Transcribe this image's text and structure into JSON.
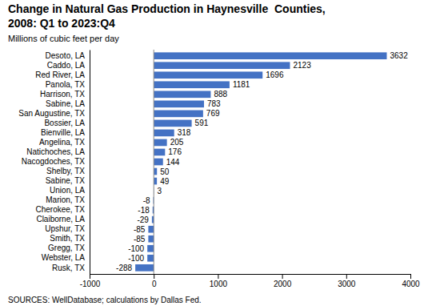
{
  "chart_data": {
    "type": "bar",
    "orientation": "horizontal",
    "title": [
      "Change in Natural Gas Production in Haynesville  Counties,",
      "2008: Q1 to 2023:Q4"
    ],
    "subtitle": "Millions of cubic feet per day",
    "annotations": [
      "SOURCES: WellDatabase; calculations by Dallas Fed."
    ],
    "categories": [
      "Desoto, LA",
      "Caddo, LA",
      "Red River, LA",
      "Panola, TX",
      "Harrison, TX",
      "Sabine, LA",
      "San Augustine, TX",
      "Bossier, LA",
      "Bienville, LA",
      "Angelina, TX",
      "Natichoches, LA",
      "Nacogdoches, TX",
      "Shelby, TX",
      "Sabine, TX",
      "Union, LA",
      "Marion, TX",
      "Cherokee, TX",
      "Claiborne, LA",
      "Upshur, TX",
      "Smith, TX",
      "Gregg, TX",
      "Webster, LA",
      "Rusk, TX"
    ],
    "values": [
      3632,
      2123,
      1696,
      1181,
      888,
      783,
      769,
      591,
      318,
      205,
      176,
      144,
      50,
      49,
      3,
      -8,
      -18,
      -29,
      -85,
      -85,
      -100,
      -100,
      -288
    ],
    "color": "#4472C4",
    "xlim": [
      -1000,
      4000
    ],
    "xticks": [
      -1000,
      0,
      1000,
      2000,
      3000,
      4000
    ],
    "grid": false,
    "data_labels": true
  }
}
